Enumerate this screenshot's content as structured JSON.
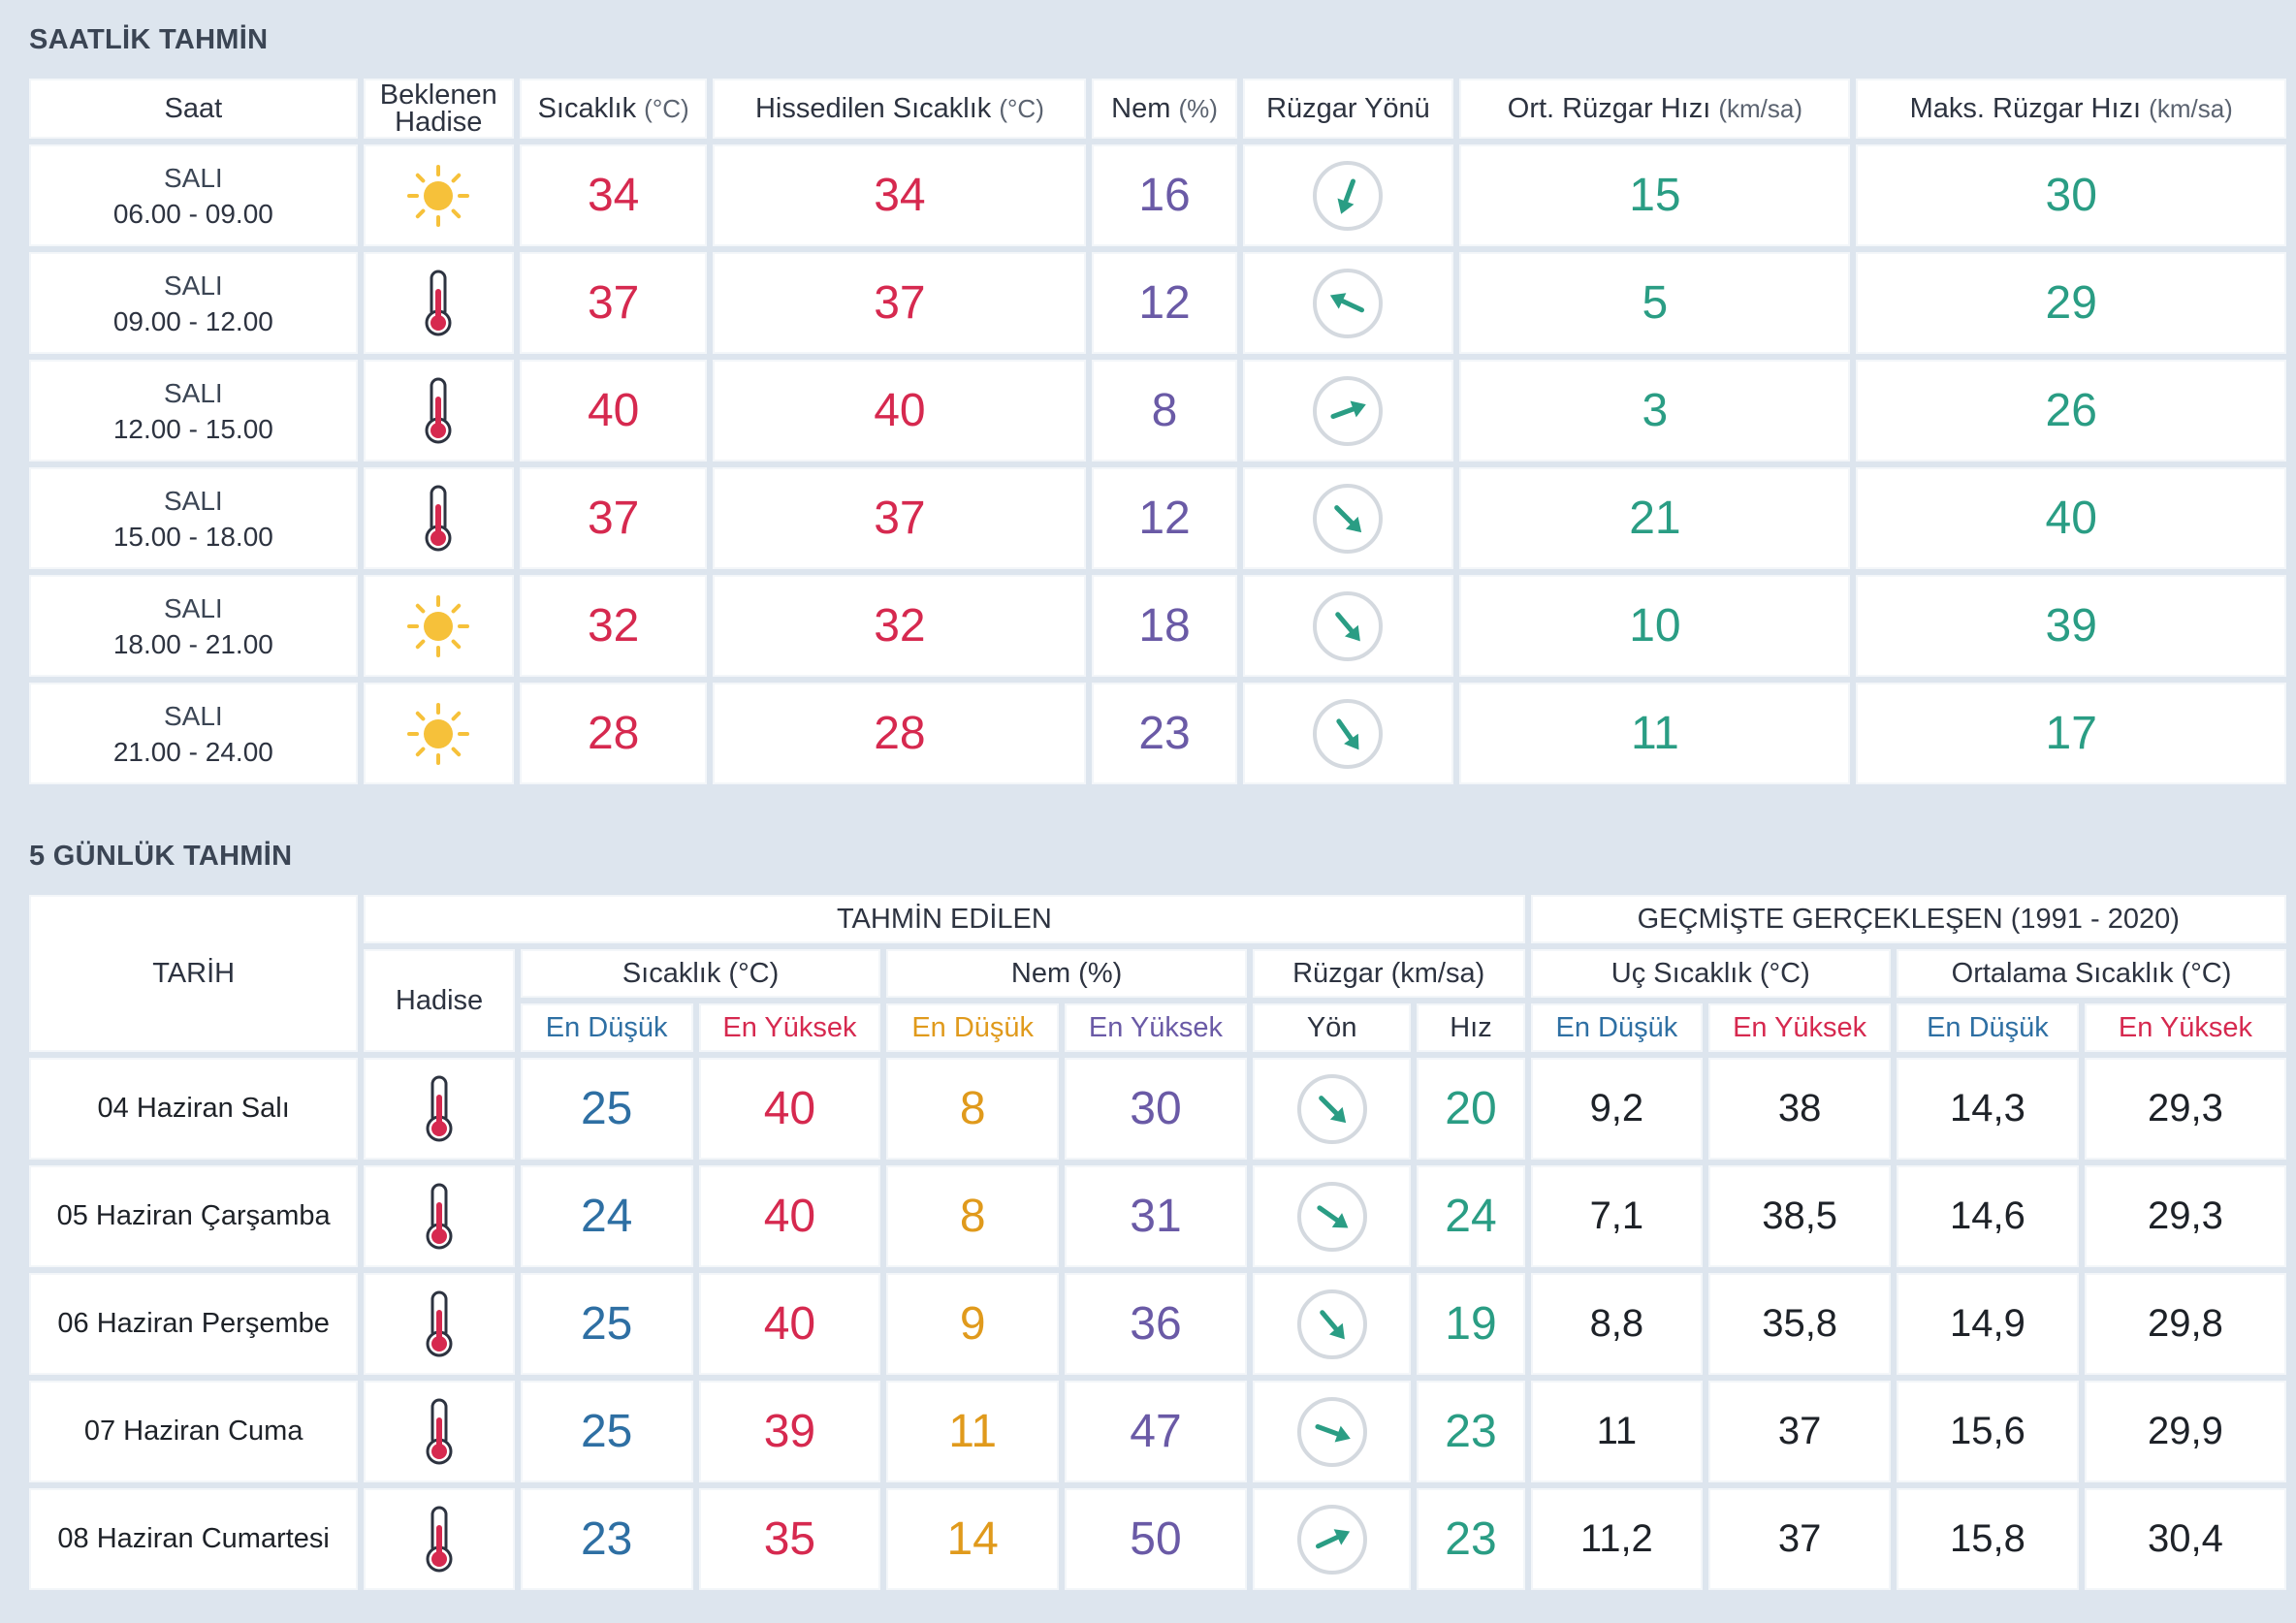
{
  "hourly": {
    "title": "SAATLİK TAHMİN",
    "headers": {
      "saat": "Saat",
      "hadise_l1": "Beklenen",
      "hadise_l2": "Hadise",
      "sicaklik": "Sıcaklık",
      "sicaklik_unit": "(°C)",
      "hissedilen": "Hissedilen Sıcaklık",
      "hissedilen_unit": "(°C)",
      "nem": "Nem",
      "nem_unit": "(%)",
      "ruzgar_yonu": "Rüzgar Yönü",
      "ort_ruzgar": "Ort. Rüzgar Hızı",
      "ort_ruzgar_unit": "(km/sa)",
      "maks_ruzgar": "Maks. Rüzgar Hızı",
      "maks_ruzgar_unit": "(km/sa)"
    },
    "rows": [
      {
        "day": "SALI",
        "time": "06.00 - 09.00",
        "icon": "sun-icon",
        "temp": "34",
        "feels": "34",
        "humidity": "16",
        "wind_dir_deg": 200,
        "avg_wind": "15",
        "max_wind": "30"
      },
      {
        "day": "SALI",
        "time": "09.00 - 12.00",
        "icon": "thermometer-icon",
        "temp": "37",
        "feels": "37",
        "humidity": "12",
        "wind_dir_deg": -65,
        "avg_wind": "5",
        "max_wind": "29"
      },
      {
        "day": "SALI",
        "time": "12.00 - 15.00",
        "icon": "thermometer-icon",
        "temp": "40",
        "feels": "40",
        "humidity": "8",
        "wind_dir_deg": 70,
        "avg_wind": "3",
        "max_wind": "26"
      },
      {
        "day": "SALI",
        "time": "15.00 - 18.00",
        "icon": "thermometer-icon",
        "temp": "37",
        "feels": "37",
        "humidity": "12",
        "wind_dir_deg": 135,
        "avg_wind": "21",
        "max_wind": "40"
      },
      {
        "day": "SALI",
        "time": "18.00 - 21.00",
        "icon": "sun-icon",
        "temp": "32",
        "feels": "32",
        "humidity": "18",
        "wind_dir_deg": 140,
        "avg_wind": "10",
        "max_wind": "39"
      },
      {
        "day": "SALI",
        "time": "21.00 - 24.00",
        "icon": "sun-icon",
        "temp": "28",
        "feels": "28",
        "humidity": "23",
        "wind_dir_deg": 145,
        "avg_wind": "11",
        "max_wind": "17"
      }
    ]
  },
  "daily": {
    "title": "5 GÜNLÜK TAHMİN",
    "headers": {
      "tarih": "TARİH",
      "tahmin_edilen": "TAHMİN EDİLEN",
      "gecmiste": "GEÇMİŞTE GERÇEKLEŞEN (1991 - 2020)",
      "hadise": "Hadise",
      "sicaklik": "Sıcaklık (°C)",
      "nem": "Nem (%)",
      "ruzgar": "Rüzgar (km/sa)",
      "uc_sicaklik": "Uç Sıcaklık (°C)",
      "ortalama_sicaklik": "Ortalama Sıcaklık (°C)",
      "en_dusuk": "En Düşük",
      "en_yuksek": "En Yüksek",
      "yon": "Yön",
      "hiz": "Hız"
    },
    "rows": [
      {
        "date": "04 Haziran Salı",
        "icon": "thermometer-icon",
        "temp_min": "25",
        "temp_max": "40",
        "hum_min": "8",
        "hum_max": "30",
        "wind_dir_deg": 135,
        "wind_speed": "20",
        "uc_min": "9,2",
        "uc_max": "38",
        "ort_min": "14,3",
        "ort_max": "29,3"
      },
      {
        "date": "05 Haziran Çarşamba",
        "icon": "thermometer-icon",
        "temp_min": "24",
        "temp_max": "40",
        "hum_min": "8",
        "hum_max": "31",
        "wind_dir_deg": 125,
        "wind_speed": "24",
        "uc_min": "7,1",
        "uc_max": "38,5",
        "ort_min": "14,6",
        "ort_max": "29,3"
      },
      {
        "date": "06 Haziran Perşembe",
        "icon": "thermometer-icon",
        "temp_min": "25",
        "temp_max": "40",
        "hum_min": "9",
        "hum_max": "36",
        "wind_dir_deg": 140,
        "wind_speed": "19",
        "uc_min": "8,8",
        "uc_max": "35,8",
        "ort_min": "14,9",
        "ort_max": "29,8"
      },
      {
        "date": "07 Haziran Cuma",
        "icon": "thermometer-icon",
        "temp_min": "25",
        "temp_max": "39",
        "hum_min": "11",
        "hum_max": "47",
        "wind_dir_deg": 110,
        "wind_speed": "23",
        "uc_min": "11",
        "uc_max": "37",
        "ort_min": "15,6",
        "ort_max": "29,9"
      },
      {
        "date": "08 Haziran Cumartesi",
        "icon": "thermometer-icon",
        "temp_min": "23",
        "temp_max": "35",
        "hum_min": "14",
        "hum_max": "50",
        "wind_dir_deg": 65,
        "wind_speed": "23",
        "uc_min": "11,2",
        "uc_max": "37",
        "ort_min": "15,8",
        "ort_max": "30,4"
      }
    ]
  },
  "colors": {
    "temp": "#d6294f",
    "humidity": "#6a5aa6",
    "wind": "#2a9d84",
    "low": "#2e6fa3",
    "orange": "#e09a1c",
    "sun": "#f6c13a"
  }
}
